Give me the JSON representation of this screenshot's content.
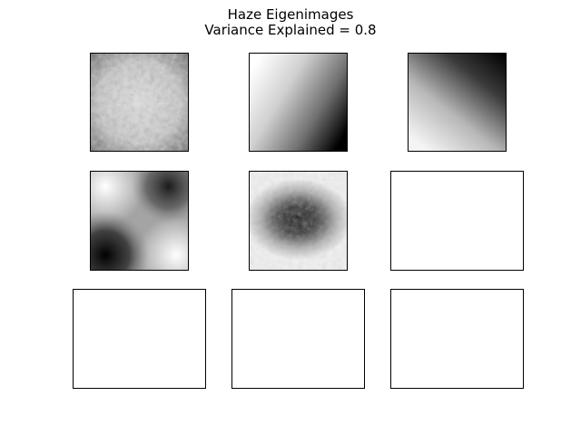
{
  "figure": {
    "title_line_1": "Haze Eigenimages",
    "title_line_2": "Variance Explained = 0.8"
  },
  "colormap": "gray",
  "grid": {
    "rows": 3,
    "cols": 3
  },
  "panels": [
    {
      "kind": "eigenimage",
      "index": 1,
      "pattern": "noisy-light-uniform"
    },
    {
      "kind": "eigenimage",
      "index": 2,
      "pattern": "diagonal-gradient-light-top-left-to-dark-bottom-right"
    },
    {
      "kind": "eigenimage",
      "index": 3,
      "pattern": "diagonal-gradient-dark-top-right-to-light-bottom-left"
    },
    {
      "kind": "eigenimage",
      "index": 4,
      "pattern": "saddle-dark-top-right-and-bottom-left"
    },
    {
      "kind": "eigenimage",
      "index": 5,
      "pattern": "dark-central-blob"
    },
    {
      "kind": "empty-axes",
      "index": 6
    },
    {
      "kind": "empty-axes",
      "index": 7
    },
    {
      "kind": "empty-axes",
      "index": 8
    },
    {
      "kind": "empty-axes",
      "index": 9
    }
  ]
}
